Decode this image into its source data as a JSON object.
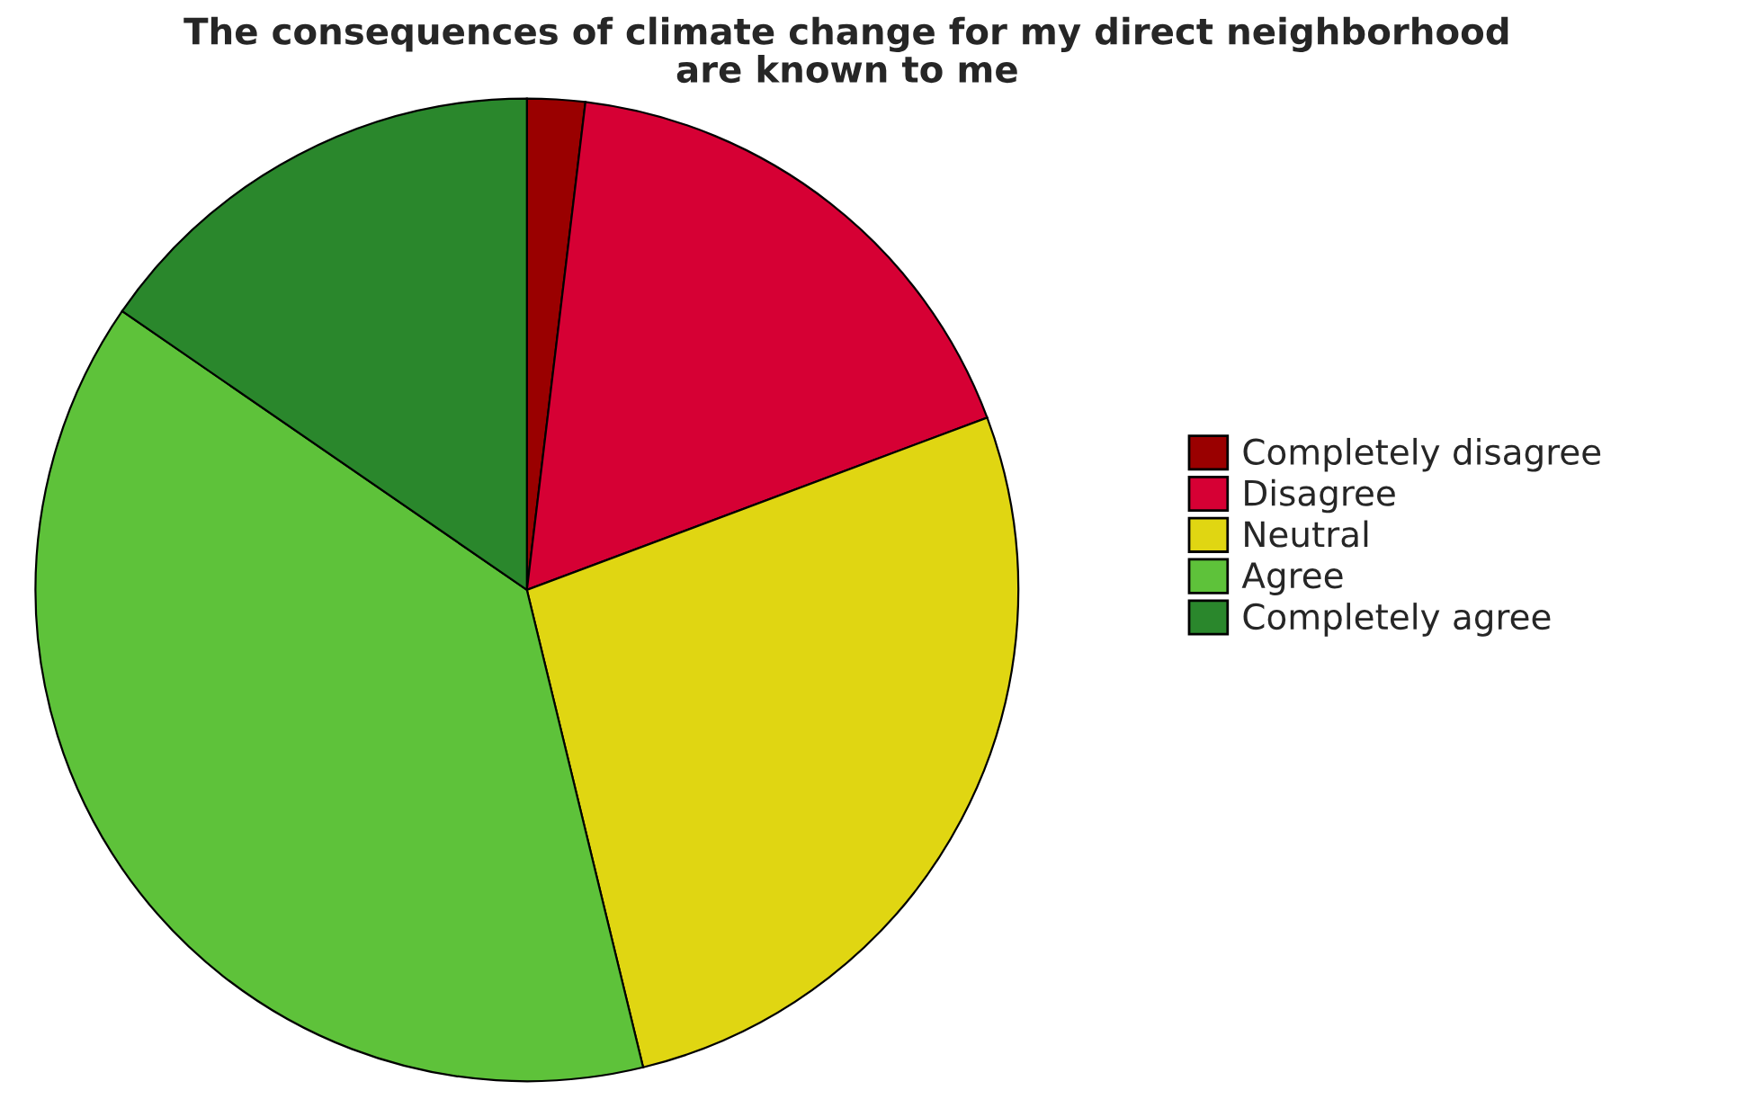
{
  "chart_data": {
    "type": "pie",
    "title": "The consequences of climate change for my direct neighborhood\nare known to me",
    "categories": [
      "Completely disagree",
      "Disagree",
      "Neutral",
      "Agree",
      "Completely agree"
    ],
    "values": [
      1.9,
      17.4,
      26.9,
      38.4,
      15.4
    ],
    "colors": [
      "#9a0000",
      "#d60034",
      "#e0d612",
      "#5ec23a",
      "#2a872c"
    ],
    "legend": "right"
  }
}
